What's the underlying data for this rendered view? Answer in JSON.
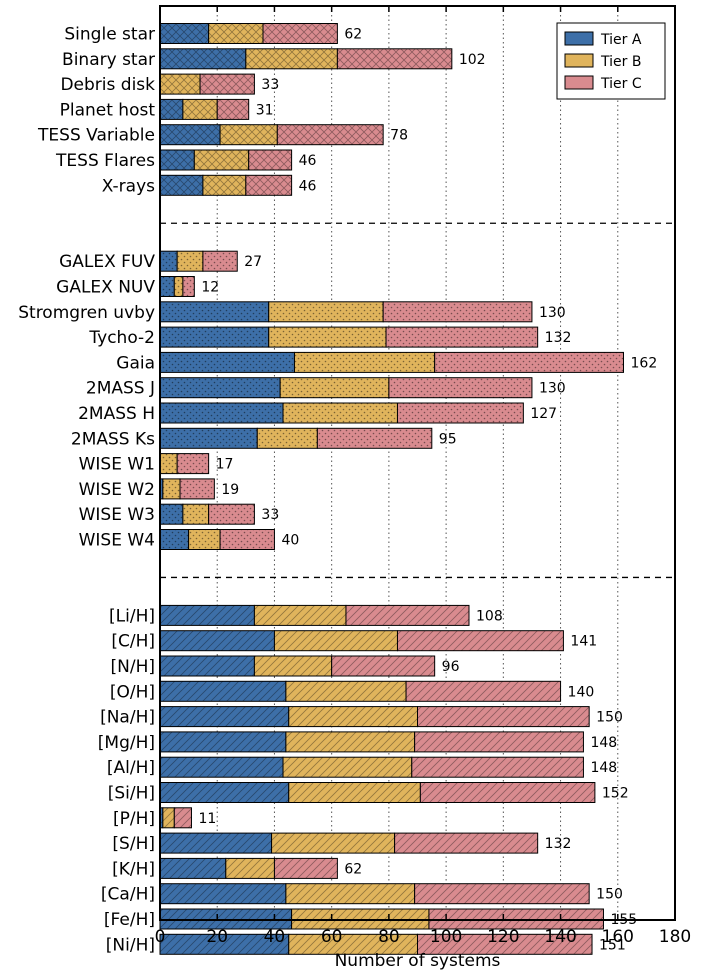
{
  "chart_data": {
    "type": "bar",
    "orientation": "horizontal",
    "stacked": true,
    "xlabel": "Number of systems",
    "xlim": [
      0,
      180
    ],
    "xticks": [
      0,
      20,
      40,
      60,
      80,
      100,
      120,
      140,
      160,
      180
    ],
    "grid": "vertical dotted",
    "legend": "top-right",
    "series": [
      {
        "name": "Tier A",
        "color": "#3d6fa8"
      },
      {
        "name": "Tier B",
        "color": "#e0b45c"
      },
      {
        "name": "Tier C",
        "color": "#d98b8f"
      }
    ],
    "groups": [
      {
        "hatch": "crosshatch",
        "rows": [
          {
            "label": "Single star",
            "values": [
              17,
              19,
              26
            ],
            "total": 62
          },
          {
            "label": "Binary star",
            "values": [
              30,
              32,
              40
            ],
            "total": 102
          },
          {
            "label": "Debris disk",
            "values": [
              0,
              14,
              19
            ],
            "total": 33
          },
          {
            "label": "Planet host",
            "values": [
              8,
              12,
              11
            ],
            "total": 31
          },
          {
            "label": "TESS Variable",
            "values": [
              21,
              20,
              37
            ],
            "total": 78
          },
          {
            "label": "TESS Flares",
            "values": [
              12,
              19,
              15
            ],
            "total": 46
          },
          {
            "label": "X-rays",
            "values": [
              15,
              15,
              16
            ],
            "total": 46
          }
        ]
      },
      {
        "hatch": "dots",
        "rows": [
          {
            "label": "GALEX FUV",
            "values": [
              6,
              9,
              12
            ],
            "total": 27
          },
          {
            "label": "GALEX NUV",
            "values": [
              5,
              3,
              4
            ],
            "total": 12
          },
          {
            "label": "Stromgren uvby",
            "values": [
              38,
              40,
              52
            ],
            "total": 130
          },
          {
            "label": "Tycho-2",
            "values": [
              38,
              41,
              53
            ],
            "total": 132
          },
          {
            "label": "Gaia",
            "values": [
              47,
              49,
              66
            ],
            "total": 162
          },
          {
            "label": "2MASS J",
            "values": [
              42,
              38,
              50
            ],
            "total": 130
          },
          {
            "label": "2MASS H",
            "values": [
              43,
              40,
              44
            ],
            "total": 127
          },
          {
            "label": "2MASS Ks",
            "values": [
              34,
              21,
              40
            ],
            "total": 95
          },
          {
            "label": "WISE W1",
            "values": [
              0,
              6,
              11
            ],
            "total": 17
          },
          {
            "label": "WISE W2",
            "values": [
              1,
              6,
              12
            ],
            "total": 19
          },
          {
            "label": "WISE W3",
            "values": [
              8,
              9,
              16
            ],
            "total": 33
          },
          {
            "label": "WISE W4",
            "values": [
              10,
              11,
              19
            ],
            "total": 40
          }
        ]
      },
      {
        "hatch": "diagonal",
        "rows": [
          {
            "label": "[Li/H]",
            "values": [
              33,
              32,
              43
            ],
            "total": 108
          },
          {
            "label": "[C/H]",
            "values": [
              40,
              43,
              58
            ],
            "total": 141
          },
          {
            "label": "[N/H]",
            "values": [
              33,
              27,
              36
            ],
            "total": 96
          },
          {
            "label": "[O/H]",
            "values": [
              44,
              42,
              54
            ],
            "total": 140
          },
          {
            "label": "[Na/H]",
            "values": [
              45,
              45,
              60
            ],
            "total": 150
          },
          {
            "label": "[Mg/H]",
            "values": [
              44,
              45,
              59
            ],
            "total": 148
          },
          {
            "label": "[Al/H]",
            "values": [
              43,
              45,
              60
            ],
            "total": 148
          },
          {
            "label": "[Si/H]",
            "values": [
              45,
              46,
              61
            ],
            "total": 152
          },
          {
            "label": "[P/H]",
            "values": [
              1,
              4,
              6
            ],
            "total": 11
          },
          {
            "label": "[S/H]",
            "values": [
              39,
              43,
              50
            ],
            "total": 132
          },
          {
            "label": "[K/H]",
            "values": [
              23,
              17,
              22
            ],
            "total": 62
          },
          {
            "label": "[Ca/H]",
            "values": [
              44,
              45,
              61
            ],
            "total": 150
          },
          {
            "label": "[Fe/H]",
            "values": [
              46,
              48,
              61
            ],
            "total": 155
          },
          {
            "label": "[Ni/H]",
            "values": [
              45,
              45,
              61
            ],
            "total": 151
          }
        ]
      }
    ]
  }
}
